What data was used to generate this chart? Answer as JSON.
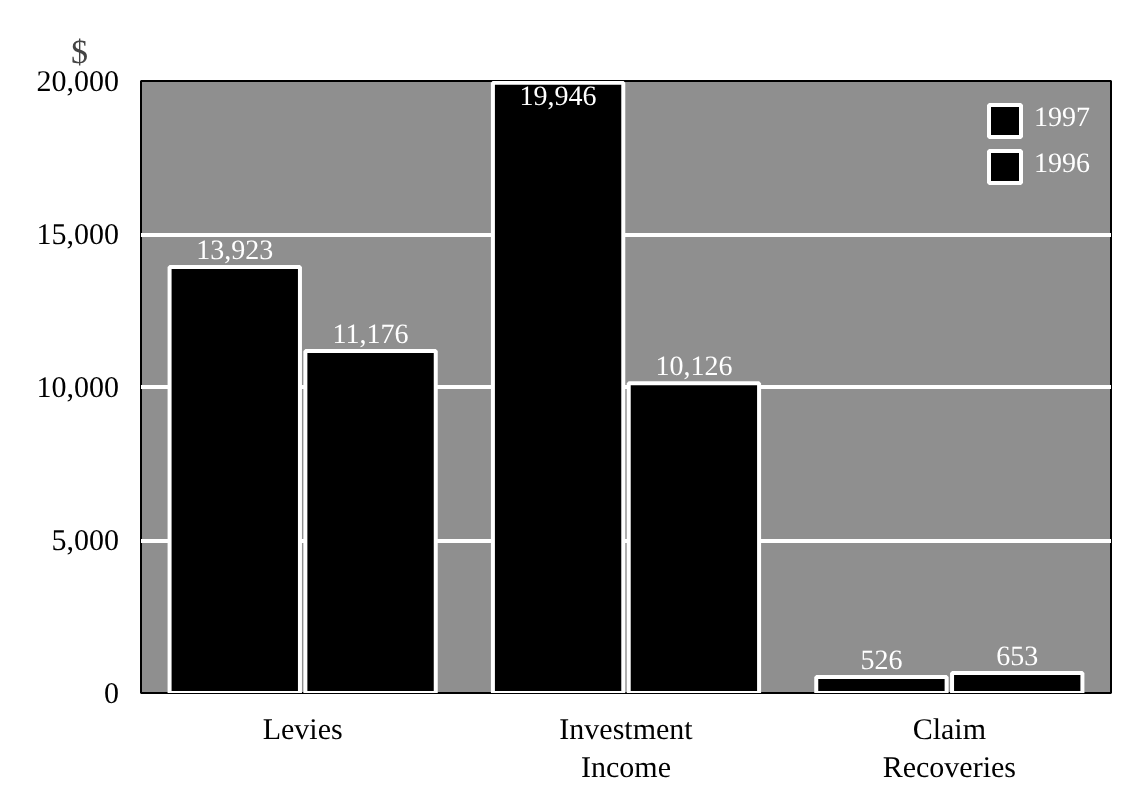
{
  "chart_data": {
    "type": "bar",
    "ylabel": "$",
    "categories": [
      "Levies",
      "Investment\nIncome",
      "Claim\nRecoveries"
    ],
    "series": [
      {
        "name": "1997",
        "color": "#000000",
        "values": [
          13923,
          19946,
          526
        ],
        "value_labels": [
          "13,923",
          "19,946",
          "526"
        ]
      },
      {
        "name": "1996",
        "color": "#000000",
        "values": [
          11176,
          10126,
          653
        ],
        "value_labels": [
          "11,176",
          "10,126",
          "653"
        ]
      }
    ],
    "ylim": [
      0,
      20000
    ],
    "yticks": [
      {
        "value": 0,
        "label": "0"
      },
      {
        "value": 5000,
        "label": "5,000"
      },
      {
        "value": 10000,
        "label": "10,000"
      },
      {
        "value": 15000,
        "label": "15,000"
      },
      {
        "value": 20000,
        "label": "20,000"
      }
    ],
    "grid": "y",
    "legend": "top right"
  }
}
